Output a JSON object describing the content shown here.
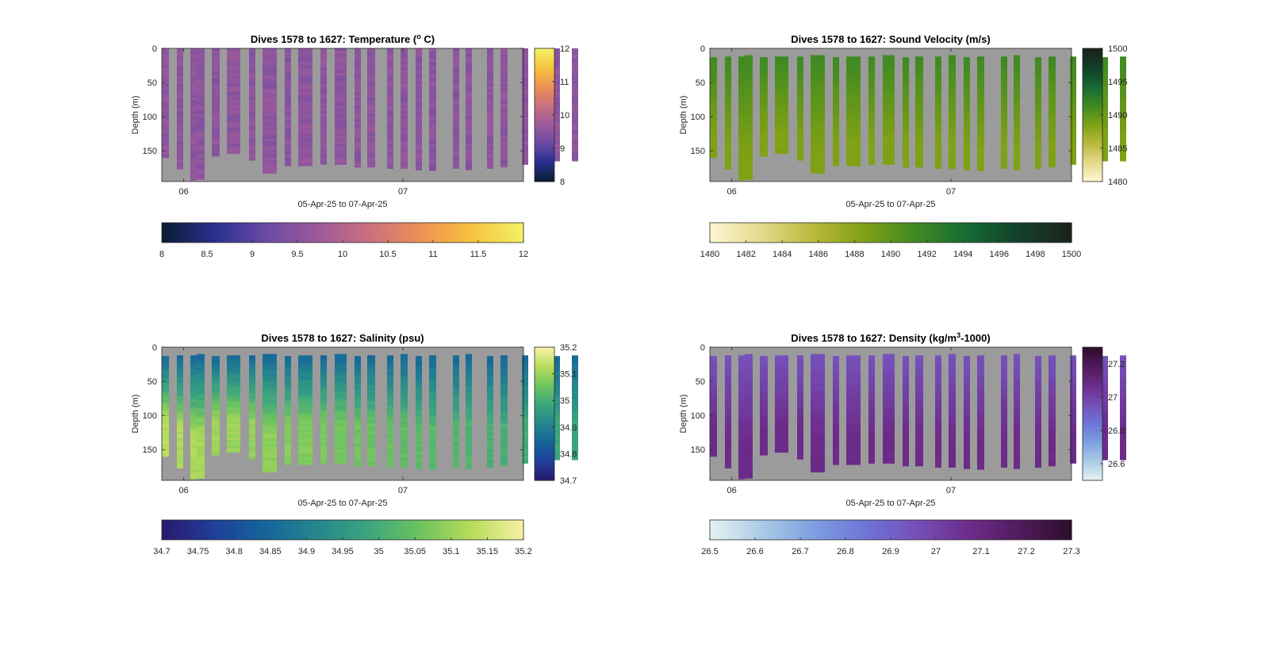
{
  "figure": {
    "background": "#ffffff",
    "axes_background": "#9b9b9b"
  },
  "chart_data": [
    {
      "type": "heatmap",
      "title": "Dives 1578 to 1627: Temperature (",
      "title_sup": "o",
      "title_suffix": " C)",
      "xlabel": "05-Apr-25 to 07-Apr-25",
      "ylabel": "Depth (m)",
      "x_ticks": [
        "06",
        "07"
      ],
      "y_ticks": [
        0,
        50,
        100,
        150
      ],
      "ylim": [
        0,
        195
      ],
      "depth_direction": "down",
      "colormap": "thermal",
      "colormap_stops": [
        "#0b1e33",
        "#2a2f8f",
        "#6a4aa6",
        "#9b5a9a",
        "#c96f80",
        "#ee8f55",
        "#f7c13d",
        "#f2f066"
      ],
      "right_colorbar": {
        "min": 8,
        "max": 12,
        "ticks": [
          8,
          9,
          10,
          11,
          12
        ]
      },
      "bottom_colorbar": {
        "min": 8,
        "max": 12,
        "ticks": [
          8,
          8.5,
          9,
          9.5,
          10,
          10.5,
          11,
          11.5,
          12
        ]
      },
      "profile_value_range": [
        9.4,
        9.7
      ],
      "profile_variation": "nearly uniform"
    },
    {
      "type": "heatmap",
      "title": "Dives 1578 to 1627: Sound Velocity (m/s)",
      "xlabel": "05-Apr-25 to 07-Apr-25",
      "ylabel": "Depth (m)",
      "x_ticks": [
        "06",
        "07"
      ],
      "y_ticks": [
        0,
        50,
        100,
        150
      ],
      "ylim": [
        0,
        195
      ],
      "depth_direction": "down",
      "colormap": "speed",
      "colormap_stops": [
        "#fdf6cf",
        "#e3d98a",
        "#b9b93a",
        "#7ea015",
        "#3f8a22",
        "#156b33",
        "#12402a",
        "#1a2419"
      ],
      "right_colorbar": {
        "min": 1480,
        "max": 1500,
        "ticks": [
          1480,
          1485,
          1490,
          1495,
          1500
        ]
      },
      "bottom_colorbar": {
        "min": 1480,
        "max": 1500,
        "ticks": [
          1480,
          1482,
          1484,
          1486,
          1488,
          1490,
          1492,
          1494,
          1496,
          1498,
          1500
        ]
      },
      "profile_value_range": [
        1488.5,
        1491.5
      ],
      "profile_variation": "slightly higher near surface"
    },
    {
      "type": "heatmap",
      "title": "Dives 1578 to 1627: Salinity (psu)",
      "xlabel": "05-Apr-25 to 07-Apr-25",
      "ylabel": "Depth (m)",
      "x_ticks": [
        "06",
        "07"
      ],
      "y_ticks": [
        0,
        50,
        100,
        150
      ],
      "ylim": [
        0,
        195
      ],
      "depth_direction": "down",
      "colormap": "haline",
      "colormap_stops": [
        "#2a1a6e",
        "#1f3f9a",
        "#15659a",
        "#26868d",
        "#3ca57e",
        "#6cc35f",
        "#b5dc5a",
        "#f6f1a3"
      ],
      "right_colorbar": {
        "min": 34.7,
        "max": 35.2,
        "ticks": [
          34.7,
          34.8,
          34.9,
          35,
          35.1,
          35.2
        ]
      },
      "bottom_colorbar": {
        "min": 34.7,
        "max": 35.2,
        "ticks": [
          34.7,
          34.75,
          34.8,
          34.85,
          34.9,
          34.95,
          35,
          35.05,
          35.1,
          35.15,
          35.2
        ]
      },
      "profile_value_range": [
        34.85,
        35.13
      ],
      "profile_variation": "fresher near surface, saltier at depth; fresher on later dives"
    },
    {
      "type": "heatmap",
      "title": "Dives 1578 to 1627: Density (kg/m",
      "title_sup": "3",
      "title_suffix": "-1000)",
      "xlabel": "05-Apr-25 to 07-Apr-25",
      "ylabel": "Depth (m)",
      "x_ticks": [
        "06",
        "07"
      ],
      "y_ticks": [
        0,
        50,
        100,
        150
      ],
      "ylim": [
        0,
        195
      ],
      "depth_direction": "down",
      "colormap": "dense",
      "colormap_stops": [
        "#e6f1f1",
        "#a9cbe6",
        "#7d9fe0",
        "#6f74d8",
        "#7550b8",
        "#6d2d8c",
        "#521b5e",
        "#2f0e2c"
      ],
      "right_colorbar": {
        "min": 26.5,
        "max": 27.3,
        "ticks": [
          26.6,
          26.8,
          27,
          27.2
        ]
      },
      "bottom_colorbar": {
        "min": 26.5,
        "max": 27.3,
        "ticks": [
          26.5,
          26.6,
          26.7,
          26.8,
          26.9,
          27,
          27.1,
          27.2,
          27.3
        ]
      },
      "profile_value_range": [
        26.95,
        27.08
      ],
      "profile_variation": "lighter near surface, denser at depth"
    }
  ],
  "dives": {
    "count": 26,
    "x_range_days": [
      5.9,
      7.55
    ],
    "tick_positions_days": [
      6,
      7
    ],
    "max_depth_m": [
      160,
      177,
      193,
      192,
      158,
      154,
      164,
      183,
      172,
      172,
      170,
      170,
      174,
      174,
      176,
      176,
      178,
      179,
      176,
      178,
      176,
      174,
      170,
      170,
      165,
      165
    ]
  }
}
